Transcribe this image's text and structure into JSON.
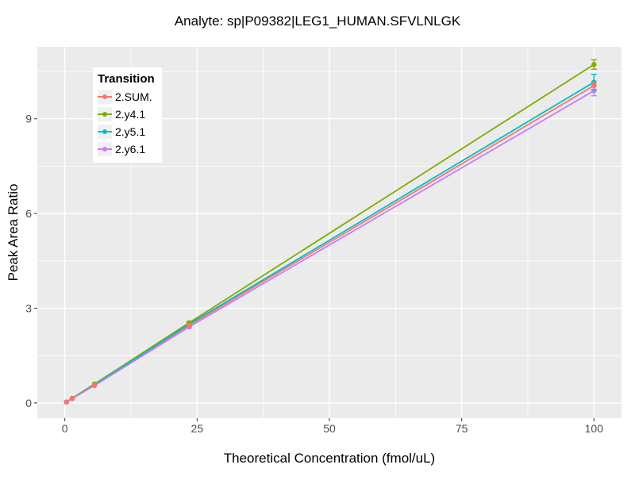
{
  "chart_data": {
    "type": "line",
    "title": "Analyte: sp|P09382|LEG1_HUMAN.SFVLNLGK",
    "xlabel": "Theoretical Concentration (fmol/uL)",
    "ylabel": "Peak Area Ratio",
    "legend_title": "Transition",
    "legend_position": "top-left-inside",
    "grid": true,
    "panel_bg": "#EBEBEB",
    "grid_color": "#FFFFFF",
    "tick_label_color": "#4D4D4D",
    "tick_mark_color": "#333333",
    "xlim": [
      -5.2,
      105.2
    ],
    "ylim": [
      -0.48,
      11.28
    ],
    "x_ticks": [
      0,
      25,
      50,
      75,
      100
    ],
    "y_ticks": [
      0,
      3,
      6,
      9
    ],
    "x_minor": [
      12.5,
      37.5,
      62.5,
      87.5
    ],
    "y_minor": [
      1.5,
      4.5,
      7.5,
      10.5
    ],
    "x": [
      0.3,
      1.4,
      5.6,
      23.5,
      100
    ],
    "series": [
      {
        "name": "2.SUM.",
        "color": "#F8766D",
        "values": [
          0.03,
          0.14,
          0.56,
          2.46,
          10.05
        ],
        "errors": [
          0,
          0,
          0,
          0.04,
          0.12
        ]
      },
      {
        "name": "2.y4.1",
        "color": "#7CAE00",
        "values": [
          0.03,
          0.15,
          0.6,
          2.54,
          10.72
        ],
        "errors": [
          0,
          0,
          0,
          0.04,
          0.15
        ]
      },
      {
        "name": "2.y5.1",
        "color": "#00BFC4",
        "values": [
          0.03,
          0.14,
          0.57,
          2.5,
          10.16
        ],
        "errors": [
          0,
          0,
          0,
          0.07,
          0.25
        ]
      },
      {
        "name": "2.y6.1",
        "color": "#C77CFF",
        "values": [
          0.03,
          0.14,
          0.55,
          2.41,
          9.89
        ],
        "errors": [
          0,
          0,
          0,
          0.04,
          0.16
        ]
      }
    ]
  }
}
